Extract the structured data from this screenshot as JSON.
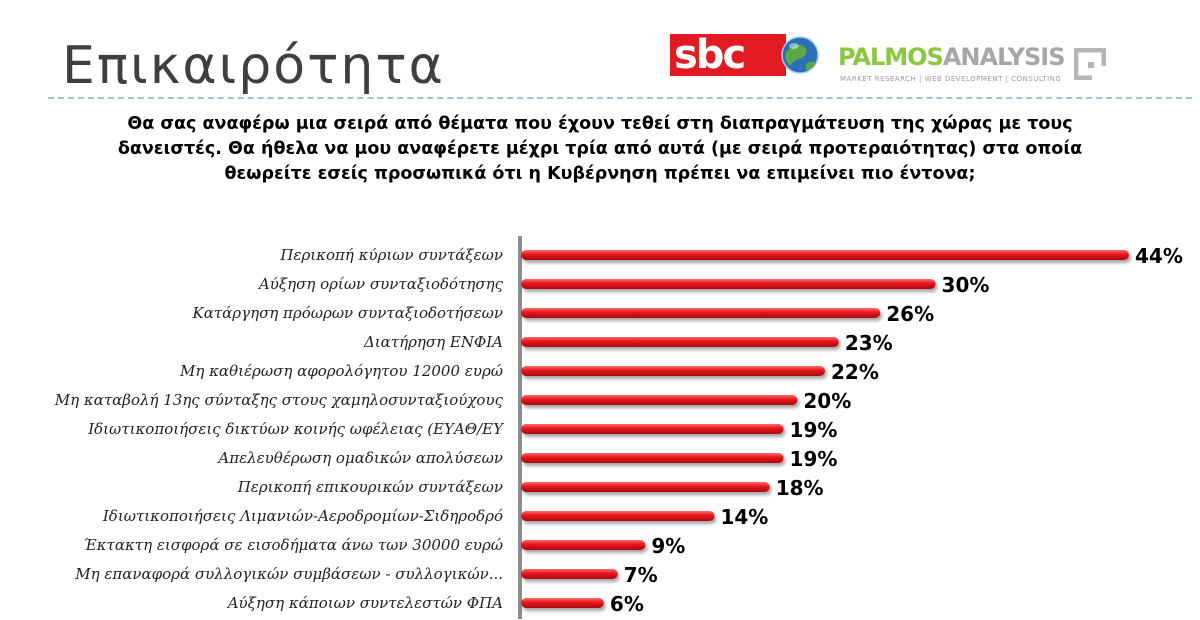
{
  "header": {
    "title": "Επικαιρότητα",
    "logo_sbc_text": "sbc",
    "logo_palmos_primary": "PALMOS",
    "logo_palmos_secondary": "ANALYSIS",
    "logo_palmos_tagline": "MARKET RESEARCH | WEB DEVELOPMENT | CONSULTING"
  },
  "colors": {
    "bar": "#e8141b",
    "axis": "#8c8c8c",
    "sbc_red": "#e21b22",
    "globe_blue": "#2a6fb8"
  },
  "chart_data": {
    "type": "bar",
    "orientation": "horizontal",
    "title": "Θα σας αναφέρω μια σειρά από θέματα που έχουν τεθεί στη διαπραγμάτευση της χώρας με τους δανειστές. Θα ήθελα να μου αναφέρετε μέχρι τρία από αυτά (με σειρά προτεραιότητας) στα οποία θεωρείτε εσείς προσωπικά ότι η Κυβέρνηση πρέπει να επιμείνει πιο έντονα;",
    "categories": [
      "Περικοπή κύριων συντάξεων",
      "Αύξηση ορίων συνταξιοδότησης",
      "Κατάργηση πρόωρων συνταξιοδοτήσεων",
      "Διατήρηση ΕΝΦΙΑ",
      "Μη καθιέρωση αφορολόγητου 12000 ευρώ",
      "Μη καταβολή 13ης σύνταξης στους χαμηλοσυνταξιούχους",
      "Ιδιωτικοποιήσεις δικτύων κοινής ωφέλειας (ΕΥΑΘ/ΕΥ",
      "Απελευθέρωση ομαδικών απολύσεων",
      "Περικοπή επικουρικών συντάξεων",
      "Ιδιωτικοποιήσεις Λιμανιών-Αεροδρομίων-Σιδηροδρό",
      "Έκτακτη εισφορά σε εισοδήματα άνω των 30000 ευρώ",
      "Μη επαναφορά συλλογικών συμβάσεων - συλλογικών...",
      "Αύξηση κάποιων συντελεστών ΦΠΑ"
    ],
    "values": [
      44,
      30,
      26,
      23,
      22,
      20,
      19,
      19,
      18,
      14,
      9,
      7,
      6
    ],
    "value_labels": [
      "44%",
      "30%",
      "26%",
      "23%",
      "22%",
      "20%",
      "19%",
      "19%",
      "18%",
      "14%",
      "9%",
      "7%",
      "6%"
    ],
    "unit": "%",
    "xlim": [
      0,
      44
    ],
    "grid": false,
    "legend": "none"
  }
}
